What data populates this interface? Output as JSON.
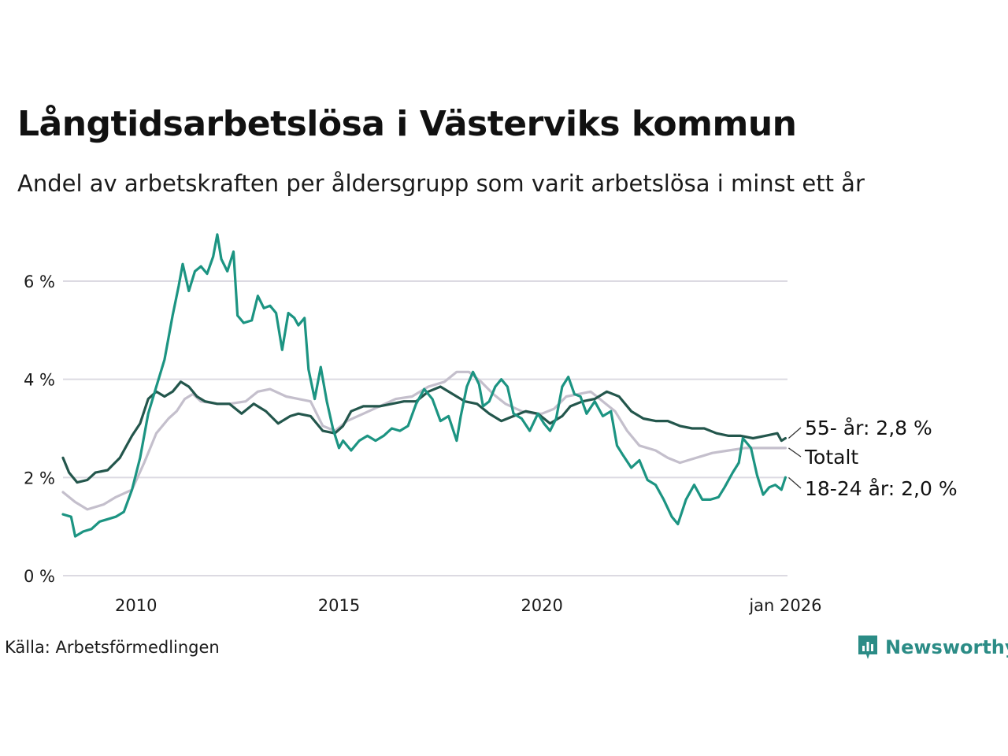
{
  "title": "Långtidsarbetslösa i Västerviks kommun",
  "subtitle": "Andel av arbetskraften per åldersgrupp som varit arbetslösa i minst ett år",
  "source": "Källa: Arbetsförmedlingen",
  "brand": {
    "name": "Newsworthy",
    "color": "#2b8c86"
  },
  "chart_data": {
    "type": "line",
    "title": "Långtidsarbetslösa i Västerviks kommun",
    "ylabel": "",
    "xlabel": "",
    "ylim": [
      0,
      7
    ],
    "xlim": [
      2008.2,
      2026.05
    ],
    "grid": true,
    "yticks": [
      0,
      2,
      4,
      6
    ],
    "ytick_labels": [
      "0 %",
      "2 %",
      "4 %",
      "6 %"
    ],
    "xticks": [
      2010,
      2015,
      2020,
      2026.0
    ],
    "xtick_labels": [
      "2010",
      "2015",
      "2020",
      "jan 2026"
    ],
    "series": [
      {
        "name": "Totalt",
        "label": "Totalt",
        "color": "#c4bfcc",
        "points": [
          [
            2008.2,
            1.7
          ],
          [
            2008.5,
            1.5
          ],
          [
            2008.8,
            1.35
          ],
          [
            2009.2,
            1.45
          ],
          [
            2009.5,
            1.6
          ],
          [
            2009.9,
            1.75
          ],
          [
            2010.2,
            2.3
          ],
          [
            2010.5,
            2.9
          ],
          [
            2010.8,
            3.2
          ],
          [
            2011.0,
            3.35
          ],
          [
            2011.2,
            3.6
          ],
          [
            2011.4,
            3.7
          ],
          [
            2011.6,
            3.55
          ],
          [
            2012.0,
            3.5
          ],
          [
            2012.3,
            3.5
          ],
          [
            2012.7,
            3.55
          ],
          [
            2013.0,
            3.75
          ],
          [
            2013.3,
            3.8
          ],
          [
            2013.7,
            3.65
          ],
          [
            2014.0,
            3.6
          ],
          [
            2014.3,
            3.55
          ],
          [
            2014.6,
            3.05
          ],
          [
            2014.9,
            2.95
          ],
          [
            2015.2,
            3.15
          ],
          [
            2015.6,
            3.3
          ],
          [
            2016.0,
            3.45
          ],
          [
            2016.4,
            3.6
          ],
          [
            2016.8,
            3.65
          ],
          [
            2017.2,
            3.85
          ],
          [
            2017.6,
            3.95
          ],
          [
            2017.9,
            4.15
          ],
          [
            2018.2,
            4.15
          ],
          [
            2018.5,
            3.95
          ],
          [
            2018.8,
            3.7
          ],
          [
            2019.1,
            3.5
          ],
          [
            2019.5,
            3.35
          ],
          [
            2019.8,
            3.3
          ],
          [
            2020.0,
            3.3
          ],
          [
            2020.3,
            3.4
          ],
          [
            2020.6,
            3.65
          ],
          [
            2020.9,
            3.7
          ],
          [
            2021.2,
            3.75
          ],
          [
            2021.5,
            3.55
          ],
          [
            2021.8,
            3.35
          ],
          [
            2022.1,
            2.95
          ],
          [
            2022.4,
            2.65
          ],
          [
            2022.8,
            2.55
          ],
          [
            2023.1,
            2.4
          ],
          [
            2023.4,
            2.3
          ],
          [
            2023.8,
            2.4
          ],
          [
            2024.2,
            2.5
          ],
          [
            2024.6,
            2.55
          ],
          [
            2025.0,
            2.6
          ],
          [
            2025.4,
            2.6
          ],
          [
            2025.8,
            2.6
          ],
          [
            2026.0,
            2.6
          ]
        ]
      },
      {
        "name": "55- år",
        "label": "55- år: 2,8 %",
        "color": "#23564c",
        "points": [
          [
            2008.2,
            2.4
          ],
          [
            2008.35,
            2.1
          ],
          [
            2008.55,
            1.9
          ],
          [
            2008.8,
            1.95
          ],
          [
            2009.0,
            2.1
          ],
          [
            2009.3,
            2.15
          ],
          [
            2009.6,
            2.4
          ],
          [
            2009.9,
            2.85
          ],
          [
            2010.1,
            3.1
          ],
          [
            2010.3,
            3.6
          ],
          [
            2010.5,
            3.75
          ],
          [
            2010.7,
            3.65
          ],
          [
            2010.9,
            3.75
          ],
          [
            2011.1,
            3.95
          ],
          [
            2011.3,
            3.85
          ],
          [
            2011.5,
            3.65
          ],
          [
            2011.7,
            3.55
          ],
          [
            2012.0,
            3.5
          ],
          [
            2012.3,
            3.5
          ],
          [
            2012.6,
            3.3
          ],
          [
            2012.9,
            3.5
          ],
          [
            2013.2,
            3.35
          ],
          [
            2013.5,
            3.1
          ],
          [
            2013.8,
            3.25
          ],
          [
            2014.0,
            3.3
          ],
          [
            2014.3,
            3.25
          ],
          [
            2014.6,
            2.95
          ],
          [
            2014.9,
            2.9
          ],
          [
            2015.1,
            3.05
          ],
          [
            2015.3,
            3.35
          ],
          [
            2015.6,
            3.45
          ],
          [
            2016.0,
            3.45
          ],
          [
            2016.3,
            3.5
          ],
          [
            2016.6,
            3.55
          ],
          [
            2016.9,
            3.55
          ],
          [
            2017.2,
            3.75
          ],
          [
            2017.5,
            3.85
          ],
          [
            2017.8,
            3.7
          ],
          [
            2018.1,
            3.55
          ],
          [
            2018.4,
            3.5
          ],
          [
            2018.7,
            3.3
          ],
          [
            2019.0,
            3.15
          ],
          [
            2019.3,
            3.25
          ],
          [
            2019.6,
            3.35
          ],
          [
            2019.9,
            3.3
          ],
          [
            2020.2,
            3.1
          ],
          [
            2020.5,
            3.25
          ],
          [
            2020.7,
            3.45
          ],
          [
            2021.0,
            3.55
          ],
          [
            2021.3,
            3.6
          ],
          [
            2021.6,
            3.75
          ],
          [
            2021.9,
            3.65
          ],
          [
            2022.2,
            3.35
          ],
          [
            2022.5,
            3.2
          ],
          [
            2022.8,
            3.15
          ],
          [
            2023.1,
            3.15
          ],
          [
            2023.4,
            3.05
          ],
          [
            2023.7,
            3.0
          ],
          [
            2024.0,
            3.0
          ],
          [
            2024.3,
            2.9
          ],
          [
            2024.6,
            2.85
          ],
          [
            2024.9,
            2.85
          ],
          [
            2025.2,
            2.8
          ],
          [
            2025.5,
            2.85
          ],
          [
            2025.8,
            2.9
          ],
          [
            2025.9,
            2.75
          ],
          [
            2026.0,
            2.8
          ]
        ]
      },
      {
        "name": "18-24 år",
        "label": "18-24 år: 2,0 %",
        "color": "#1c9482",
        "points": [
          [
            2008.2,
            1.25
          ],
          [
            2008.4,
            1.2
          ],
          [
            2008.5,
            0.8
          ],
          [
            2008.7,
            0.9
          ],
          [
            2008.9,
            0.95
          ],
          [
            2009.1,
            1.1
          ],
          [
            2009.3,
            1.15
          ],
          [
            2009.5,
            1.2
          ],
          [
            2009.7,
            1.3
          ],
          [
            2009.9,
            1.75
          ],
          [
            2010.1,
            2.4
          ],
          [
            2010.3,
            3.3
          ],
          [
            2010.5,
            3.85
          ],
          [
            2010.7,
            4.4
          ],
          [
            2010.9,
            5.3
          ],
          [
            2011.05,
            5.9
          ],
          [
            2011.15,
            6.35
          ],
          [
            2011.3,
            5.8
          ],
          [
            2011.45,
            6.2
          ],
          [
            2011.6,
            6.3
          ],
          [
            2011.75,
            6.15
          ],
          [
            2011.9,
            6.5
          ],
          [
            2012.0,
            6.95
          ],
          [
            2012.1,
            6.45
          ],
          [
            2012.25,
            6.2
          ],
          [
            2012.4,
            6.6
          ],
          [
            2012.5,
            5.3
          ],
          [
            2012.65,
            5.15
          ],
          [
            2012.85,
            5.2
          ],
          [
            2013.0,
            5.7
          ],
          [
            2013.15,
            5.45
          ],
          [
            2013.3,
            5.5
          ],
          [
            2013.45,
            5.35
          ],
          [
            2013.6,
            4.6
          ],
          [
            2013.75,
            5.35
          ],
          [
            2013.9,
            5.25
          ],
          [
            2014.0,
            5.1
          ],
          [
            2014.15,
            5.25
          ],
          [
            2014.25,
            4.2
          ],
          [
            2014.4,
            3.6
          ],
          [
            2014.55,
            4.25
          ],
          [
            2014.7,
            3.55
          ],
          [
            2014.85,
            3.0
          ],
          [
            2015.0,
            2.6
          ],
          [
            2015.1,
            2.75
          ],
          [
            2015.3,
            2.55
          ],
          [
            2015.5,
            2.75
          ],
          [
            2015.7,
            2.85
          ],
          [
            2015.9,
            2.75
          ],
          [
            2016.1,
            2.85
          ],
          [
            2016.3,
            3.0
          ],
          [
            2016.5,
            2.95
          ],
          [
            2016.7,
            3.05
          ],
          [
            2016.9,
            3.5
          ],
          [
            2017.1,
            3.8
          ],
          [
            2017.3,
            3.6
          ],
          [
            2017.5,
            3.15
          ],
          [
            2017.7,
            3.25
          ],
          [
            2017.9,
            2.75
          ],
          [
            2018.0,
            3.25
          ],
          [
            2018.15,
            3.85
          ],
          [
            2018.3,
            4.15
          ],
          [
            2018.45,
            3.9
          ],
          [
            2018.55,
            3.45
          ],
          [
            2018.7,
            3.55
          ],
          [
            2018.85,
            3.85
          ],
          [
            2019.0,
            4.0
          ],
          [
            2019.15,
            3.85
          ],
          [
            2019.3,
            3.3
          ],
          [
            2019.5,
            3.2
          ],
          [
            2019.7,
            2.95
          ],
          [
            2019.9,
            3.3
          ],
          [
            2020.05,
            3.1
          ],
          [
            2020.2,
            2.95
          ],
          [
            2020.35,
            3.2
          ],
          [
            2020.5,
            3.85
          ],
          [
            2020.65,
            4.05
          ],
          [
            2020.8,
            3.7
          ],
          [
            2020.95,
            3.65
          ],
          [
            2021.1,
            3.3
          ],
          [
            2021.3,
            3.55
          ],
          [
            2021.5,
            3.25
          ],
          [
            2021.7,
            3.35
          ],
          [
            2021.85,
            2.65
          ],
          [
            2022.0,
            2.45
          ],
          [
            2022.2,
            2.2
          ],
          [
            2022.4,
            2.35
          ],
          [
            2022.6,
            1.95
          ],
          [
            2022.8,
            1.85
          ],
          [
            2023.0,
            1.55
          ],
          [
            2023.2,
            1.2
          ],
          [
            2023.35,
            1.05
          ],
          [
            2023.55,
            1.55
          ],
          [
            2023.75,
            1.85
          ],
          [
            2023.95,
            1.55
          ],
          [
            2024.15,
            1.55
          ],
          [
            2024.35,
            1.6
          ],
          [
            2024.5,
            1.8
          ],
          [
            2024.7,
            2.1
          ],
          [
            2024.85,
            2.3
          ],
          [
            2024.95,
            2.8
          ],
          [
            2025.15,
            2.6
          ],
          [
            2025.3,
            2.05
          ],
          [
            2025.45,
            1.65
          ],
          [
            2025.6,
            1.8
          ],
          [
            2025.75,
            1.85
          ],
          [
            2025.9,
            1.75
          ],
          [
            2026.0,
            2.0
          ]
        ]
      }
    ]
  }
}
